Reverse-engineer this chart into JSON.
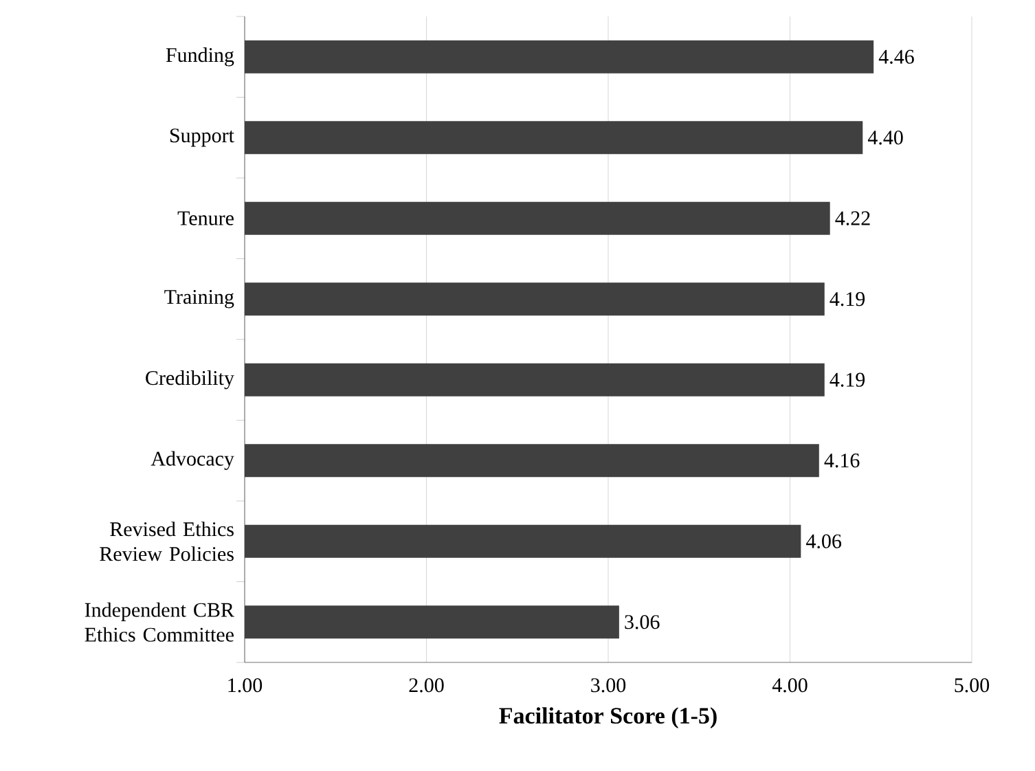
{
  "chart_data": {
    "type": "bar",
    "orientation": "horizontal",
    "xlabel": "Facilitator Score (1-5)",
    "categories": [
      "Funding",
      "Support",
      "Tenure",
      "Training",
      "Credibility",
      "Advocacy",
      "Revised Ethics Review Policies",
      "Independent CBR Ethics Committee"
    ],
    "values": [
      4.46,
      4.4,
      4.22,
      4.19,
      4.19,
      4.16,
      4.06,
      3.06
    ],
    "value_labels": [
      "4.46",
      "4.40",
      "4.22",
      "4.19",
      "4.19",
      "4.16",
      "4.06",
      "3.06"
    ],
    "color": "#404040",
    "xlim": [
      1,
      5
    ],
    "xticks": [
      {
        "value": 1,
        "label": "1.00"
      },
      {
        "value": 2,
        "label": "2.00"
      },
      {
        "value": 3,
        "label": "3.00"
      },
      {
        "value": 4,
        "label": "4.00"
      },
      {
        "value": 5,
        "label": "5.00"
      }
    ],
    "grid": "x"
  }
}
